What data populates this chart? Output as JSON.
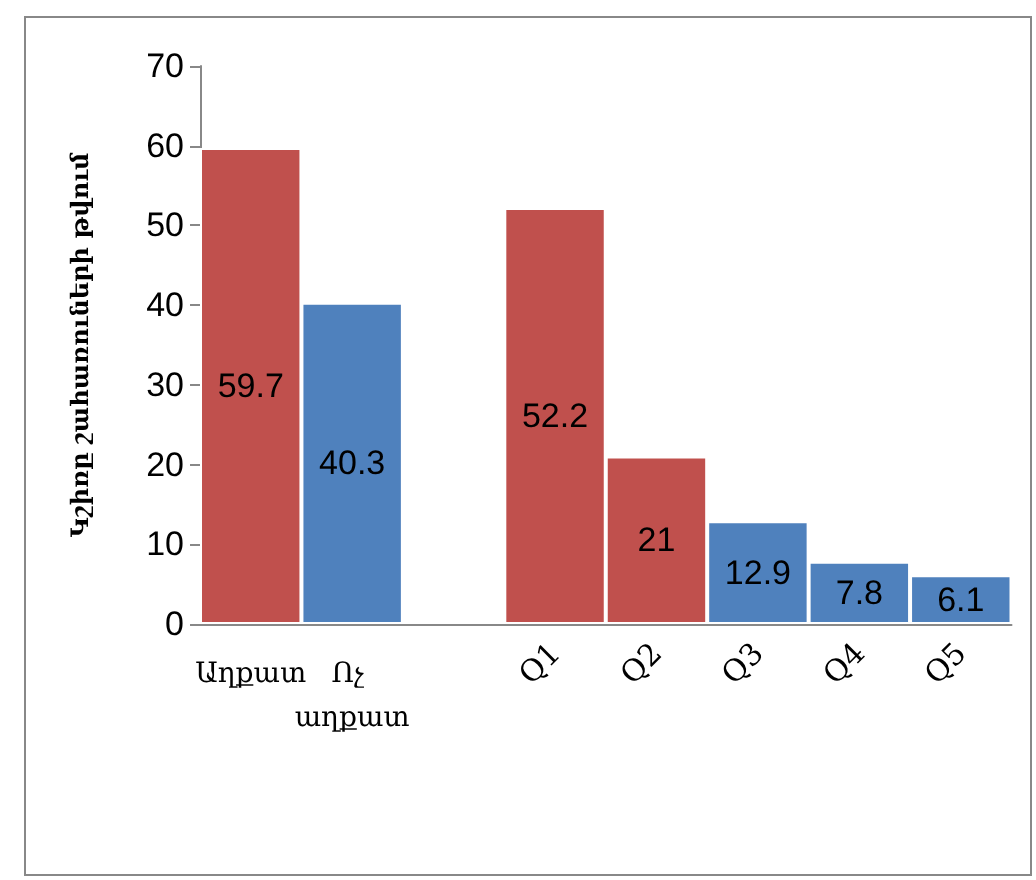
{
  "chart_data": {
    "type": "bar",
    "ylabel": "Կշիռը շահառուների թվում",
    "categories": [
      "Աղքատ",
      "Ոչ աղքատ",
      null,
      "Q1",
      "Q2",
      "Q3",
      "Q4",
      "Q5"
    ],
    "values": [
      59.7,
      40.3,
      null,
      52.2,
      21,
      12.9,
      7.8,
      6.1
    ],
    "colors": [
      "#c0504d",
      "#4f81bd",
      "#4f81bd",
      "#c0504d",
      "#c0504d",
      "#4f81bd",
      "#4f81bd",
      "#4f81bd"
    ],
    "ylim": [
      0,
      70
    ],
    "yticks": [
      0,
      10,
      20,
      30,
      40,
      50,
      60,
      70
    ],
    "grid": false,
    "data_labels": true
  }
}
